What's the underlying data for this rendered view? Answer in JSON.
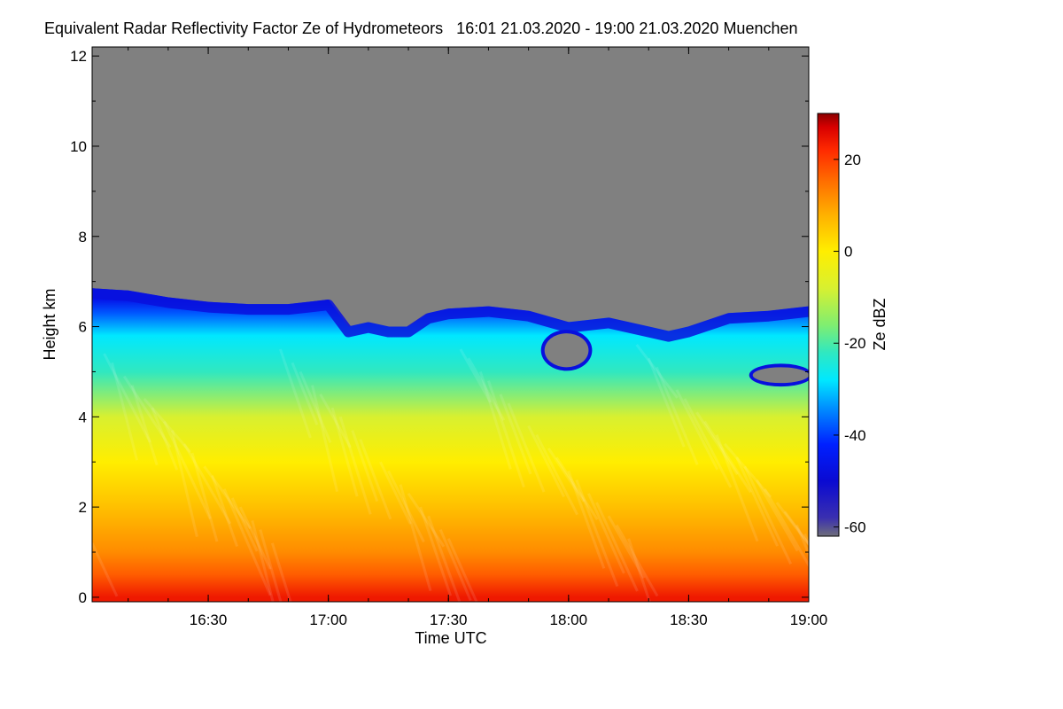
{
  "chart_data": {
    "type": "heatmap",
    "title": "Equivalent Radar Reflectivity Factor Ze of Hydrometeors   16:01 21.03.2020 - 19:00 21.03.2020 Muenchen",
    "xlabel": "Time UTC",
    "ylabel": "Height km",
    "colorbar_label": "Ze dBZ",
    "x_range_minutes": [
      961,
      1140
    ],
    "x_ticks": [
      {
        "minutes": 990,
        "label": "16:30"
      },
      {
        "minutes": 1020,
        "label": "17:00"
      },
      {
        "minutes": 1050,
        "label": "17:30"
      },
      {
        "minutes": 1080,
        "label": "18:00"
      },
      {
        "minutes": 1110,
        "label": "18:30"
      },
      {
        "minutes": 1140,
        "label": "19:00"
      }
    ],
    "y_range_km": [
      -0.1,
      12.2
    ],
    "y_ticks": [
      0,
      2,
      4,
      6,
      8,
      10,
      12
    ],
    "colorbar_range_dbz": [
      -62,
      30
    ],
    "colorbar_ticks": [
      20,
      0,
      -20,
      -40,
      -60
    ],
    "no_signal_color": "#808080",
    "colormap": [
      {
        "dbz": -62,
        "color": "#6f6f7a"
      },
      {
        "dbz": -58,
        "color": "#3a2fb0"
      },
      {
        "dbz": -50,
        "color": "#0a0ad2"
      },
      {
        "dbz": -42,
        "color": "#0020ff"
      },
      {
        "dbz": -34,
        "color": "#0090ff"
      },
      {
        "dbz": -28,
        "color": "#00e8ff"
      },
      {
        "dbz": -22,
        "color": "#30e8c0"
      },
      {
        "dbz": -16,
        "color": "#80ee70"
      },
      {
        "dbz": -8,
        "color": "#d8f030"
      },
      {
        "dbz": 0,
        "color": "#ffee00"
      },
      {
        "dbz": 8,
        "color": "#ffb000"
      },
      {
        "dbz": 15,
        "color": "#ff7000"
      },
      {
        "dbz": 22,
        "color": "#ff2a00"
      },
      {
        "dbz": 27,
        "color": "#d80000"
      },
      {
        "dbz": 30,
        "color": "#8a0000"
      }
    ],
    "echo_top_km": [
      {
        "minutes": 961,
        "km": 6.85
      },
      {
        "minutes": 970,
        "km": 6.8
      },
      {
        "minutes": 980,
        "km": 6.65
      },
      {
        "minutes": 990,
        "km": 6.55
      },
      {
        "minutes": 1000,
        "km": 6.5
      },
      {
        "minutes": 1010,
        "km": 6.5
      },
      {
        "minutes": 1015,
        "km": 6.55
      },
      {
        "minutes": 1020,
        "km": 6.6
      },
      {
        "minutes": 1025,
        "km": 6.0
      },
      {
        "minutes": 1030,
        "km": 6.1
      },
      {
        "minutes": 1035,
        "km": 6.0
      },
      {
        "minutes": 1040,
        "km": 6.0
      },
      {
        "minutes": 1045,
        "km": 6.3
      },
      {
        "minutes": 1050,
        "km": 6.4
      },
      {
        "minutes": 1060,
        "km": 6.45
      },
      {
        "minutes": 1070,
        "km": 6.35
      },
      {
        "minutes": 1080,
        "km": 6.1
      },
      {
        "minutes": 1090,
        "km": 6.2
      },
      {
        "minutes": 1100,
        "km": 6.0
      },
      {
        "minutes": 1105,
        "km": 5.9
      },
      {
        "minutes": 1110,
        "km": 6.0
      },
      {
        "minutes": 1120,
        "km": 6.3
      },
      {
        "minutes": 1130,
        "km": 6.35
      },
      {
        "minutes": 1140,
        "km": 6.45
      }
    ],
    "gap_regions": [
      {
        "t0": 1074,
        "t1": 1085,
        "h0": 5.1,
        "h1": 5.85
      },
      {
        "t0": 1126,
        "t1": 1140,
        "h0": 4.75,
        "h1": 5.1
      }
    ],
    "dbz_profile_km": [
      {
        "km": 0.0,
        "dbz": 24
      },
      {
        "km": 0.5,
        "dbz": 17
      },
      {
        "km": 1.0,
        "dbz": 12
      },
      {
        "km": 2.0,
        "dbz": 6
      },
      {
        "km": 3.0,
        "dbz": 0
      },
      {
        "km": 4.0,
        "dbz": -8
      },
      {
        "km": 5.0,
        "dbz": -22
      },
      {
        "km": 5.8,
        "dbz": -28
      },
      {
        "km": 6.3,
        "dbz": -38
      },
      {
        "km": 6.6,
        "dbz": -46
      }
    ]
  }
}
